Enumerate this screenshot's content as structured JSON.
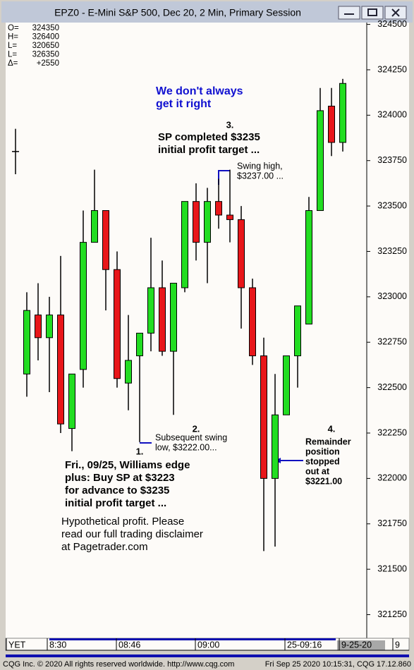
{
  "window_title": "EPZ0 - E-Mini S&P 500, Dec 20, 2 Min, Primary Session",
  "status": [
    {
      "label": "O=",
      "value": "324350"
    },
    {
      "label": "H=",
      "value": "326400"
    },
    {
      "label": "L=",
      "value": "320650"
    },
    {
      "label": "L=",
      "value": "326350"
    },
    {
      "label": "Δ=",
      "value": "+2550"
    }
  ],
  "chart_data": {
    "type": "candlestick",
    "up_color": "#22dd22",
    "down_color": "#e8161a",
    "open": [
      323800,
      322575,
      322900,
      322775,
      322900,
      322275,
      322600,
      323300,
      323475,
      323150,
      322525,
      322675,
      322800,
      323050,
      322700,
      323050,
      323525,
      323300,
      323525,
      323450,
      323425,
      323050,
      322675,
      322000,
      322350,
      322675,
      322850,
      323475,
      324050,
      323850
    ],
    "high": [
      323925,
      323025,
      323075,
      323000,
      323225,
      322575,
      323475,
      323700,
      323475,
      323250,
      322900,
      322800,
      323325,
      323200,
      323075,
      323525,
      323625,
      323600,
      323650,
      323700,
      323500,
      323100,
      322775,
      322575,
      322675,
      322950,
      323550,
      324150,
      324150,
      324200
    ],
    "low": [
      323675,
      322450,
      322650,
      322475,
      322250,
      322150,
      322500,
      323300,
      322925,
      322500,
      322375,
      322200,
      322700,
      322675,
      322350,
      323025,
      323200,
      323075,
      323375,
      323300,
      322825,
      322625,
      321600,
      321625,
      322350,
      322500,
      322850,
      323475,
      323775,
      323800
    ],
    "close": [
      323800,
      322925,
      322775,
      322900,
      322300,
      322575,
      323300,
      323475,
      323150,
      322550,
      322650,
      322800,
      323050,
      322700,
      323075,
      323525,
      323300,
      323525,
      323450,
      323425,
      323050,
      322675,
      322000,
      322350,
      322675,
      322950,
      323475,
      324025,
      323850,
      324175
    ],
    "ylim": [
      321120,
      324510
    ],
    "yticks": [
      321250,
      321500,
      321750,
      322000,
      322250,
      322500,
      322750,
      323000,
      323250,
      323500,
      323750,
      324000,
      324250,
      324500
    ],
    "grid": false,
    "x_labels": [
      "YET",
      "8:30",
      "08:46",
      "09:00",
      "25-09:16",
      "9-25-20",
      "9"
    ],
    "annotations": [
      {
        "lines": [
          "We don't always",
          "get it right"
        ]
      },
      {
        "lines": [
          "3."
        ]
      },
      {
        "lines": [
          "SP completed $3235",
          "initial profit target ..."
        ]
      },
      {
        "lines": [
          "Swing high,",
          "$3237.00 ..."
        ]
      },
      {
        "lines": [
          "2."
        ]
      },
      {
        "lines": [
          "Subsequent swing",
          "low, $3222.00..."
        ]
      },
      {
        "lines": [
          "1."
        ]
      },
      {
        "lines": [
          "Fri., 09/25, Williams edge",
          "plus: Buy SP at $3223",
          "for advance to $3235",
          "initial profit target ..."
        ]
      },
      {
        "lines": [
          "Hypothetical profit. Please",
          "read our full trading disclaimer",
          "at Pagetrader.com"
        ]
      },
      {
        "lines": [
          "4."
        ]
      },
      {
        "lines": [
          "Remainder",
          "position",
          "stopped",
          "out at",
          "$3221.00"
        ]
      }
    ]
  },
  "footer": {
    "left": "CQG Inc. © 2020 All rights reserved worldwide. http://www.cqg.com",
    "right": "Fri Sep 25 2020 10:15:31, CQG 17.12.860"
  }
}
